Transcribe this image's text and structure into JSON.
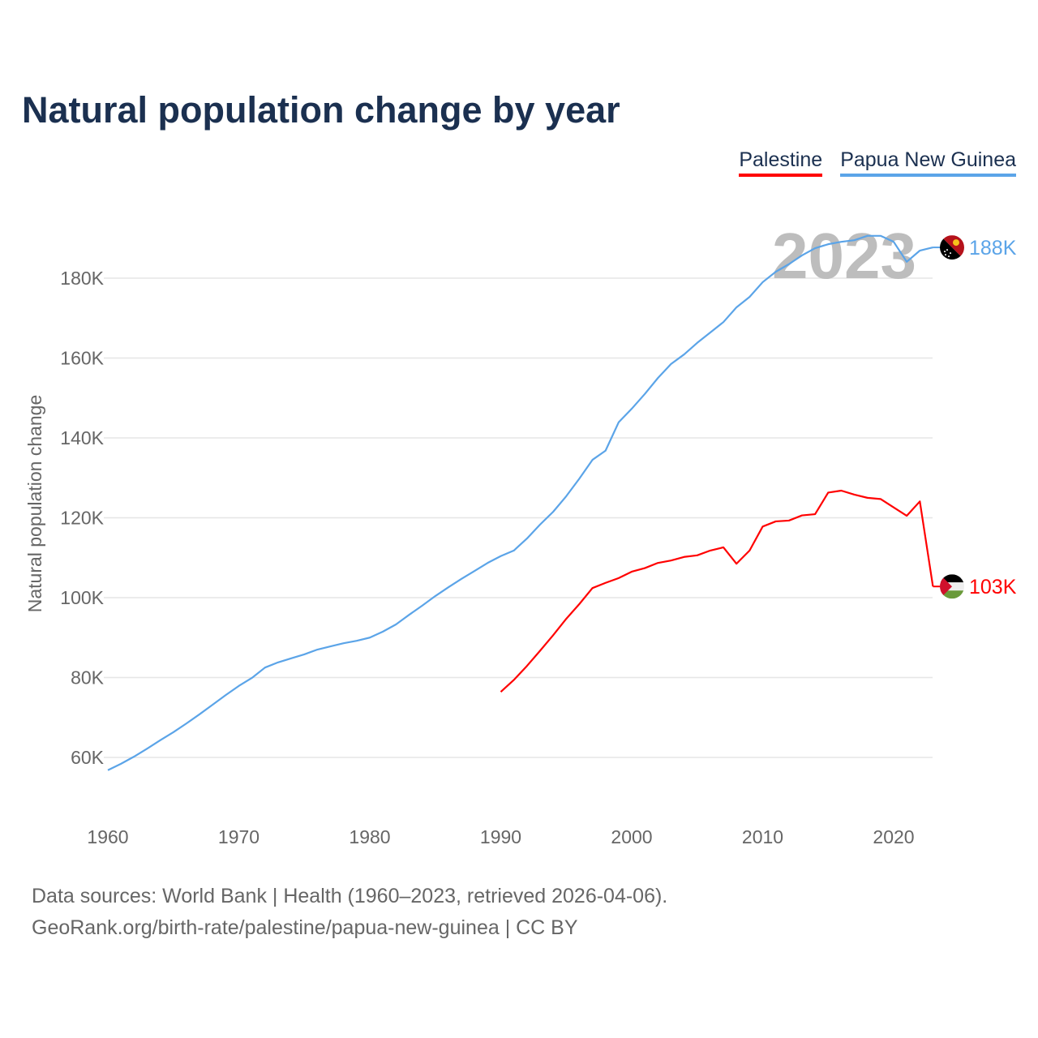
{
  "title": "Natural population change by year",
  "legend": [
    {
      "label": "Palestine",
      "color": "#ff0000"
    },
    {
      "label": "Papua New Guinea",
      "color": "#5ba4e8"
    }
  ],
  "year_marker": "2023",
  "source": {
    "line1": "Data sources: World Bank | Health (1960–2023, retrieved 2026-04-06).",
    "line2": "GeoRank.org/birth-rate/palestine/papua-new-guinea | CC BY"
  },
  "chart_data": {
    "type": "line",
    "title": "Natural population change by year",
    "xlabel": "",
    "ylabel": "Natural population change",
    "xlim": [
      1960,
      2023
    ],
    "ylim": [
      50000,
      190000
    ],
    "grid": true,
    "legend_position": "top-right",
    "x_ticks": [
      1960,
      1970,
      1980,
      1990,
      2000,
      2010,
      2020
    ],
    "x_tick_labels": [
      "1960",
      "1970",
      "1980",
      "1990",
      "2000",
      "2010",
      "2020"
    ],
    "y_ticks": [
      60000,
      80000,
      100000,
      120000,
      140000,
      160000,
      180000
    ],
    "y_tick_labels": [
      "60K",
      "80K",
      "100K",
      "120K",
      "140K",
      "160K",
      "180K"
    ],
    "series": [
      {
        "name": "Palestine",
        "color": "#ff0000",
        "flag": "palestine-flag",
        "end_label": "103K",
        "start_year": 1990,
        "values": [
          76400,
          79400,
          82900,
          86700,
          90600,
          94700,
          98400,
          102400,
          103700,
          104900,
          106500,
          107400,
          108700,
          109300,
          110200,
          110600,
          111800,
          112600,
          108500,
          111800,
          117800,
          119100,
          119300,
          120600,
          120900,
          126300,
          126800,
          125800,
          125000,
          124700,
          122600,
          120500,
          124100,
          102800
        ]
      },
      {
        "name": "Papua New Guinea",
        "color": "#5ba4e8",
        "flag": "papua-new-guinea-flag",
        "end_label": "188K",
        "start_year": 1960,
        "values": [
          56800,
          58400,
          60200,
          62200,
          64300,
          66300,
          68500,
          70800,
          73200,
          75600,
          77900,
          79900,
          82500,
          83800,
          84800,
          85800,
          87000,
          87800,
          88600,
          89200,
          90000,
          91500,
          93300,
          95700,
          98000,
          100400,
          102600,
          104700,
          106700,
          108700,
          110400,
          111800,
          114800,
          118300,
          121500,
          125400,
          129800,
          134500,
          136800,
          143900,
          147300,
          151000,
          155000,
          158500,
          160900,
          163800,
          166400,
          169000,
          172700,
          175300,
          179000,
          181600,
          183500,
          185700,
          187500,
          188500,
          189100,
          189500,
          190600,
          190600,
          189100,
          184100,
          186900,
          187700
        ]
      }
    ]
  }
}
